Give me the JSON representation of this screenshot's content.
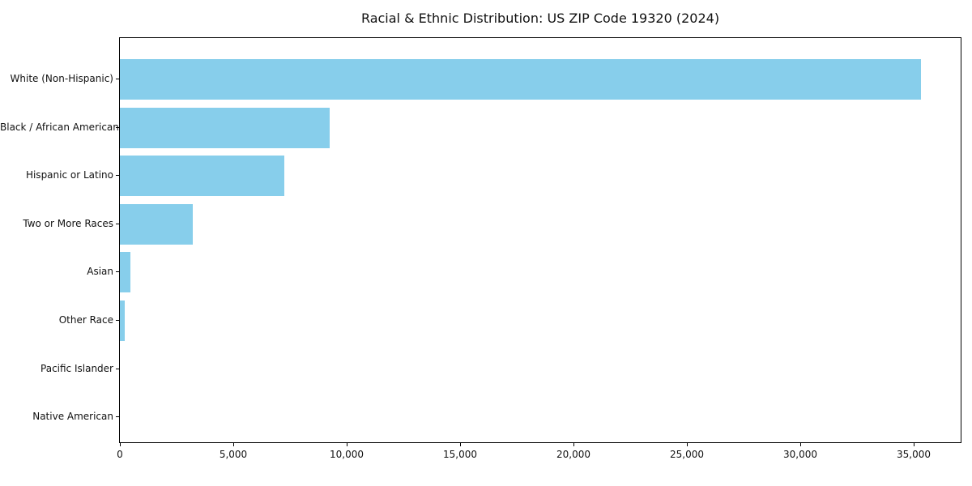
{
  "figure": {
    "background_color": "#ffffff",
    "plot_border_color": "#000000",
    "text_color": "#111111"
  },
  "chart_data": {
    "type": "bar",
    "orientation": "horizontal",
    "title": "Racial & Ethnic Distribution: US ZIP Code 19320 (2024)",
    "categories": [
      "White (Non-Hispanic)",
      "Black / African American",
      "Hispanic or Latino",
      "Two or More Races",
      "Asian",
      "Other Race",
      "Pacific Islander",
      "Native American"
    ],
    "values": [
      35300,
      9230,
      7260,
      3200,
      470,
      210,
      0,
      0
    ],
    "bar_color": "#87CEEB",
    "xlabel": "",
    "ylabel": "",
    "xlim": [
      0,
      37100
    ],
    "xticks": [
      0,
      5000,
      10000,
      15000,
      20000,
      25000,
      30000,
      35000
    ],
    "xtick_labels": [
      "0",
      "5,000",
      "10,000",
      "15,000",
      "20,000",
      "25,000",
      "30,000",
      "35,000"
    ],
    "grid": false,
    "legend": null
  }
}
